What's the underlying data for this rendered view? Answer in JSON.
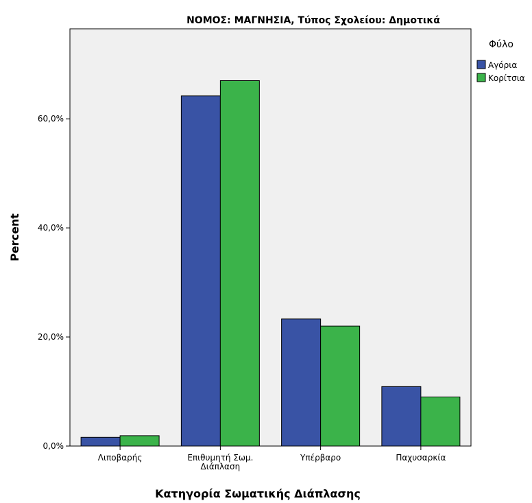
{
  "chart_data": {
    "type": "bar",
    "title": "ΝΟΜΟΣ: ΜΑΓΝΗΣΙΑ, Τύπος Σχολείου: Δημοτικά",
    "xlabel": "Κατηγορία Σωματικής Διάπλασης",
    "ylabel": "Percent",
    "categories": [
      [
        "Λιποβαρής"
      ],
      [
        "Επιθυμητή Σωμ.",
        "Διάπλαση"
      ],
      [
        "Υπέρβαρο"
      ],
      [
        "Παχυσαρκία"
      ]
    ],
    "series": [
      {
        "name": "Αγόρια",
        "color": "#3953a5",
        "values": [
          1.6,
          64.2,
          23.3,
          10.9
        ]
      },
      {
        "name": "Κορίτσια",
        "color": "#3bb34a",
        "values": [
          1.9,
          67.0,
          22.0,
          9.0
        ]
      }
    ],
    "legend_title": "Φύλο",
    "legend_position": "top-right",
    "ylim": [
      0,
      76.5
    ],
    "yticks": [
      0,
      20,
      40,
      60
    ],
    "ytick_labels": [
      "0,0%",
      "20,0%",
      "40,0%",
      "60,0%"
    ],
    "grid": false,
    "plot_background": "#f0f0f0"
  }
}
